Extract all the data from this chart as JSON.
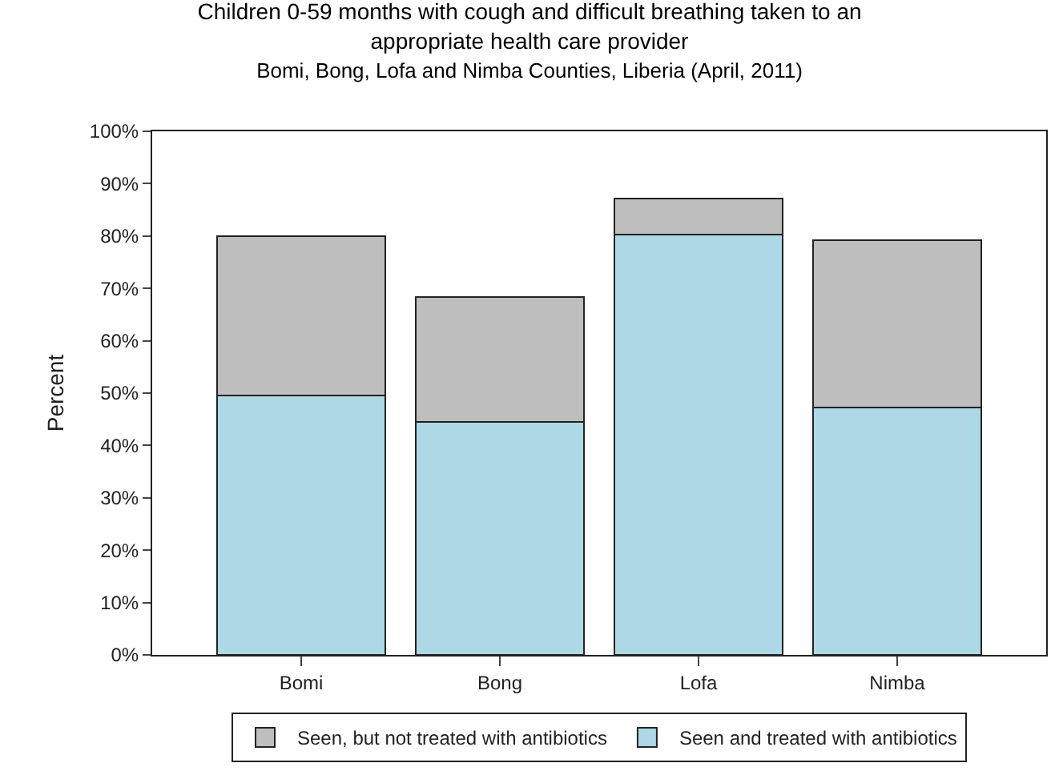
{
  "chart_data": {
    "type": "bar",
    "stacked": true,
    "title": "Children 0-59 months with cough and difficult breathing taken to an appropriate health care provider",
    "subtitle": "Bomi, Bong, Lofa and Nimba Counties, Liberia (April, 2011)",
    "ylabel": "Percent",
    "categories": [
      "Bomi",
      "Bong",
      "Lofa",
      "Nimba"
    ],
    "series": [
      {
        "name": "Seen and treated with antibiotics",
        "color": "#add8e6",
        "values": [
          49.6,
          44.5,
          80.3,
          47.2
        ]
      },
      {
        "name": "Seen, but not treated with antibiotics",
        "color": "#bebebe",
        "values": [
          30.4,
          23.8,
          6.9,
          32.0
        ]
      }
    ],
    "ylim": [
      0,
      100
    ],
    "yticks": [
      {
        "value": 0,
        "label": "0%"
      },
      {
        "value": 10,
        "label": "10%"
      },
      {
        "value": 20,
        "label": "20%"
      },
      {
        "value": 30,
        "label": "30%"
      },
      {
        "value": 40,
        "label": "40%"
      },
      {
        "value": 50,
        "label": "50%"
      },
      {
        "value": 60,
        "label": "60%"
      },
      {
        "value": 70,
        "label": "70%"
      },
      {
        "value": 80,
        "label": "80%"
      },
      {
        "value": 90,
        "label": "90%"
      },
      {
        "value": 100,
        "label": "100%"
      }
    ],
    "legend": "bottom"
  }
}
